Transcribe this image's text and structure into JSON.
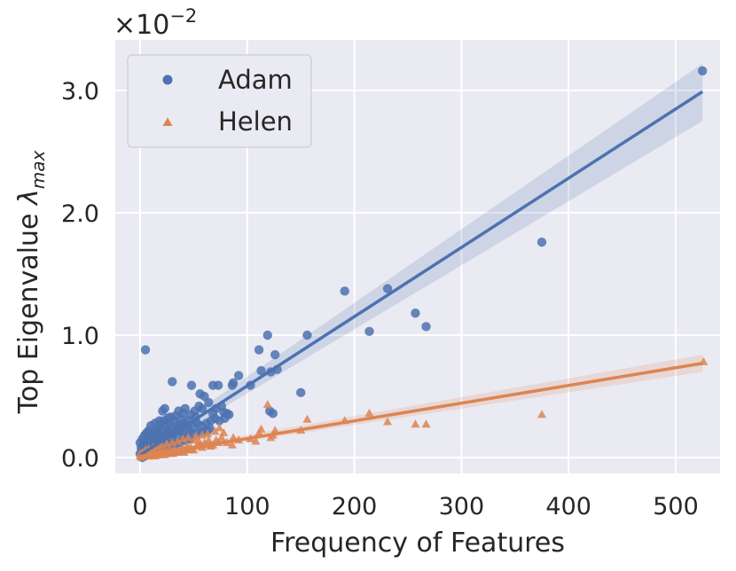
{
  "chart_data": {
    "type": "scatter",
    "xlabel": "Frequency of Features",
    "ylabel_main": "Top Eigenvalue ",
    "ylabel_symbol": "λ",
    "ylabel_sub": "max",
    "y_scale_base": "×10",
    "y_scale_exp": "−2",
    "xlim": [
      -20,
      540
    ],
    "ylim": [
      -0.15,
      3.4
    ],
    "x_ticks": [
      0,
      100,
      200,
      300,
      400,
      500
    ],
    "x_tick_labels": [
      "0",
      "100",
      "200",
      "300",
      "400",
      "500"
    ],
    "y_ticks": [
      0.0,
      1.0,
      2.0,
      3.0
    ],
    "y_tick_labels": [
      "0.0",
      "1.0",
      "2.0",
      "3.0"
    ],
    "grid": true,
    "legend_position": "top-left",
    "series": [
      {
        "name": "Adam",
        "marker": "circle",
        "color": "#4c72b0",
        "fit": {
          "start": [
            0,
            0.02
          ],
          "end": [
            525,
            2.99
          ]
        },
        "band": {
          "lower_end": 2.75,
          "upper_end": 3.22,
          "lower_start": 0.0,
          "upper_start": 0.06
        },
        "points": [
          [
            525,
            3.16
          ],
          [
            375,
            1.76
          ],
          [
            231,
            1.38
          ],
          [
            191,
            1.36
          ],
          [
            257,
            1.18
          ],
          [
            267,
            1.07
          ],
          [
            214,
            1.03
          ],
          [
            156,
            1.0
          ],
          [
            119,
            1.0
          ],
          [
            126,
            0.84
          ],
          [
            111,
            0.88
          ],
          [
            150,
            0.53
          ],
          [
            113,
            0.71
          ],
          [
            122,
            0.7
          ],
          [
            128,
            0.72
          ],
          [
            103,
            0.59
          ],
          [
            92,
            0.67
          ],
          [
            87,
            0.61
          ],
          [
            86,
            0.59
          ],
          [
            73,
            0.59
          ],
          [
            68,
            0.59
          ],
          [
            56,
            0.52
          ],
          [
            48,
            0.59
          ],
          [
            30,
            0.62
          ],
          [
            5,
            0.88
          ],
          [
            121,
            0.38
          ],
          [
            124,
            0.36
          ],
          [
            78,
            0.37
          ],
          [
            76,
            0.42
          ],
          [
            81,
            0.36
          ],
          [
            68,
            0.36
          ],
          [
            60,
            0.5
          ],
          [
            64,
            0.45
          ],
          [
            71,
            0.4
          ],
          [
            51,
            0.38
          ],
          [
            42,
            0.4
          ],
          [
            40,
            0.36
          ],
          [
            36,
            0.38
          ],
          [
            58,
            0.4
          ],
          [
            55,
            0.42
          ],
          [
            47,
            0.35
          ],
          [
            33,
            0.34
          ],
          [
            28,
            0.33
          ],
          [
            23,
            0.4
          ],
          [
            21,
            0.38
          ],
          [
            63,
            0.22
          ],
          [
            58,
            0.21
          ],
          [
            66,
            0.3
          ],
          [
            53,
            0.28
          ],
          [
            52,
            0.33
          ],
          [
            45,
            0.3
          ],
          [
            44,
            0.25
          ],
          [
            41,
            0.28
          ],
          [
            39,
            0.31
          ],
          [
            37,
            0.22
          ],
          [
            35,
            0.26
          ],
          [
            32,
            0.3
          ],
          [
            31,
            0.2
          ],
          [
            29,
            0.24
          ],
          [
            27,
            0.28
          ],
          [
            26,
            0.22
          ],
          [
            25,
            0.2
          ],
          [
            24,
            0.26
          ],
          [
            22,
            0.3
          ],
          [
            20,
            0.22
          ],
          [
            19,
            0.27
          ],
          [
            18,
            0.18
          ],
          [
            17,
            0.24
          ],
          [
            16,
            0.2
          ],
          [
            15,
            0.22
          ],
          [
            14,
            0.16
          ],
          [
            13,
            0.2
          ],
          [
            12,
            0.14
          ],
          [
            11,
            0.18
          ],
          [
            10,
            0.12
          ],
          [
            9,
            0.16
          ],
          [
            8,
            0.1
          ],
          [
            7,
            0.14
          ],
          [
            6,
            0.08
          ],
          [
            5,
            0.12
          ],
          [
            4,
            0.06
          ],
          [
            3,
            0.1
          ],
          [
            2,
            0.05
          ],
          [
            1,
            0.08
          ],
          [
            0,
            0.03
          ],
          [
            0,
            0.12
          ],
          [
            1,
            0.02
          ],
          [
            2,
            0.15
          ],
          [
            3,
            0.04
          ],
          [
            4,
            0.18
          ],
          [
            5,
            0.05
          ],
          [
            6,
            0.2
          ],
          [
            7,
            0.06
          ],
          [
            8,
            0.22
          ],
          [
            9,
            0.08
          ],
          [
            10,
            0.26
          ],
          [
            12,
            0.1
          ],
          [
            14,
            0.28
          ],
          [
            16,
            0.12
          ],
          [
            18,
            0.3
          ],
          [
            20,
            0.14
          ],
          [
            22,
            0.17
          ],
          [
            24,
            0.12
          ],
          [
            26,
            0.32
          ],
          [
            28,
            0.16
          ],
          [
            30,
            0.19
          ],
          [
            32,
            0.14
          ],
          [
            34,
            0.23
          ],
          [
            36,
            0.18
          ],
          [
            38,
            0.26
          ],
          [
            40,
            0.2
          ],
          [
            43,
            0.17
          ],
          [
            46,
            0.22
          ],
          [
            49,
            0.19
          ],
          [
            50,
            0.25
          ],
          [
            54,
            0.2
          ],
          [
            57,
            0.26
          ],
          [
            62,
            0.28
          ],
          [
            65,
            0.24
          ],
          [
            70,
            0.32
          ],
          [
            74,
            0.3
          ],
          [
            79,
            0.32
          ],
          [
            83,
            0.35
          ],
          [
            2,
            0.0
          ],
          [
            4,
            0.01
          ],
          [
            6,
            0.02
          ],
          [
            8,
            0.03
          ],
          [
            10,
            0.04
          ],
          [
            12,
            0.05
          ],
          [
            15,
            0.06
          ],
          [
            18,
            0.07
          ],
          [
            21,
            0.08
          ],
          [
            25,
            0.09
          ],
          [
            28,
            0.1
          ],
          [
            33,
            0.11
          ],
          [
            37,
            0.12
          ],
          [
            42,
            0.14
          ],
          [
            47,
            0.15
          ]
        ]
      },
      {
        "name": "Helen",
        "marker": "triangle",
        "color": "#dd8452",
        "fit": {
          "start": [
            0,
            0.01
          ],
          "end": [
            525,
            0.77
          ]
        },
        "band": {
          "lower_end": 0.7,
          "upper_end": 0.84,
          "lower_start": 0.0,
          "upper_start": 0.03
        },
        "points": [
          [
            526,
            0.78
          ],
          [
            375,
            0.35
          ],
          [
            267,
            0.27
          ],
          [
            257,
            0.27
          ],
          [
            231,
            0.29
          ],
          [
            214,
            0.36
          ],
          [
            191,
            0.3
          ],
          [
            156,
            0.31
          ],
          [
            150,
            0.22
          ],
          [
            119,
            0.43
          ],
          [
            122,
            0.16
          ],
          [
            124,
            0.18
          ],
          [
            126,
            0.22
          ],
          [
            113,
            0.23
          ],
          [
            111,
            0.2
          ],
          [
            108,
            0.13
          ],
          [
            103,
            0.15
          ],
          [
            92,
            0.14
          ],
          [
            87,
            0.16
          ],
          [
            86,
            0.1
          ],
          [
            81,
            0.12
          ],
          [
            78,
            0.2
          ],
          [
            76,
            0.16
          ],
          [
            73,
            0.12
          ],
          [
            71,
            0.14
          ],
          [
            68,
            0.1
          ],
          [
            66,
            0.09
          ],
          [
            64,
            0.14
          ],
          [
            62,
            0.1
          ],
          [
            60,
            0.12
          ],
          [
            58,
            0.08
          ],
          [
            56,
            0.1
          ],
          [
            55,
            0.13
          ],
          [
            53,
            0.09
          ],
          [
            51,
            0.14
          ],
          [
            50,
            0.06
          ],
          [
            48,
            0.06
          ],
          [
            47,
            0.08
          ],
          [
            45,
            0.06
          ],
          [
            44,
            0.09
          ],
          [
            42,
            0.06
          ],
          [
            41,
            0.04
          ],
          [
            40,
            0.07
          ],
          [
            39,
            0.05
          ],
          [
            37,
            0.06
          ],
          [
            36,
            0.04
          ],
          [
            35,
            0.05
          ],
          [
            33,
            0.04
          ],
          [
            32,
            0.06
          ],
          [
            31,
            0.03
          ],
          [
            30,
            0.05
          ],
          [
            29,
            0.03
          ],
          [
            28,
            0.04
          ],
          [
            27,
            0.06
          ],
          [
            26,
            0.03
          ],
          [
            25,
            0.04
          ],
          [
            24,
            0.05
          ],
          [
            23,
            0.02
          ],
          [
            22,
            0.04
          ],
          [
            21,
            0.03
          ],
          [
            20,
            0.05
          ],
          [
            19,
            0.02
          ],
          [
            18,
            0.04
          ],
          [
            17,
            0.03
          ],
          [
            16,
            0.02
          ],
          [
            15,
            0.04
          ],
          [
            14,
            0.01
          ],
          [
            13,
            0.03
          ],
          [
            12,
            0.02
          ],
          [
            11,
            0.04
          ],
          [
            10,
            0.01
          ],
          [
            9,
            0.03
          ],
          [
            8,
            0.02
          ],
          [
            7,
            0.01
          ],
          [
            6,
            0.03
          ],
          [
            5,
            0.02
          ],
          [
            4,
            0.01
          ],
          [
            3,
            0.02
          ],
          [
            2,
            0.01
          ],
          [
            1,
            0.0
          ],
          [
            0,
            0.01
          ],
          [
            0,
            0.03
          ],
          [
            2,
            0.04
          ],
          [
            5,
            0.06
          ],
          [
            8,
            0.07
          ],
          [
            12,
            0.08
          ],
          [
            16,
            0.09
          ],
          [
            20,
            0.1
          ],
          [
            25,
            0.11
          ],
          [
            30,
            0.12
          ],
          [
            35,
            0.13
          ],
          [
            40,
            0.15
          ],
          [
            45,
            0.16
          ],
          [
            52,
            0.17
          ],
          [
            58,
            0.18
          ],
          [
            63,
            0.19
          ],
          [
            70,
            0.21
          ],
          [
            74,
            0.24
          ]
        ]
      }
    ]
  }
}
